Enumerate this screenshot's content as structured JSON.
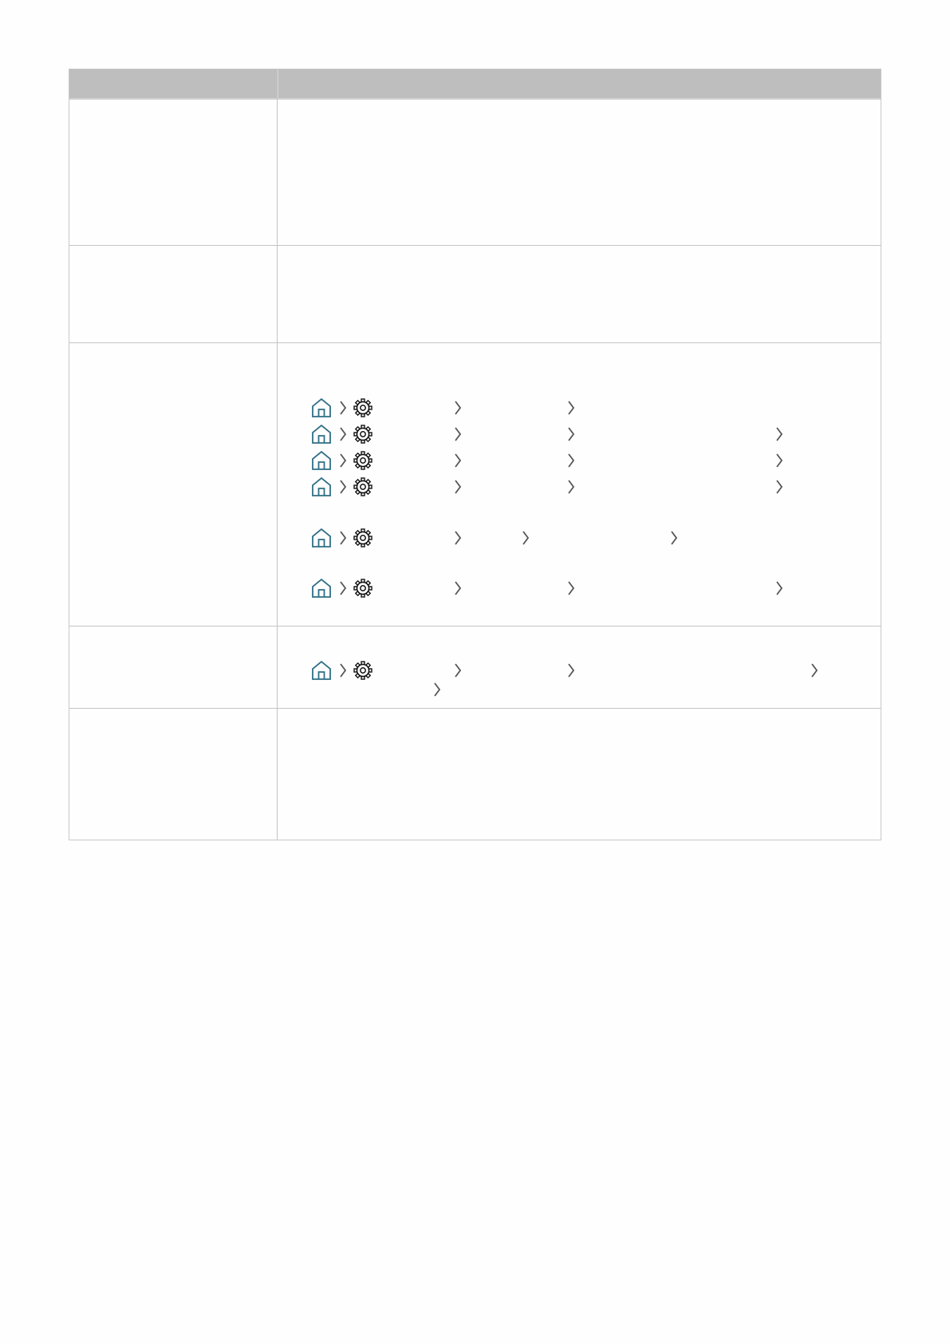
{
  "table": {
    "header": {
      "col1": "",
      "col2": ""
    },
    "row_count": 5
  },
  "colors": {
    "header_bg": "#bebebe",
    "border": "#c4c4c4",
    "home_icon": "#2f6f85",
    "chevron": "#555555",
    "gear": "#111111"
  },
  "icons": {
    "home": "home-icon",
    "settings": "gear-icon",
    "separator": "chevron-right-icon"
  },
  "breadcrumbs": [
    {
      "row": 3,
      "steps": 3
    },
    {
      "row": 3,
      "steps": 4
    },
    {
      "row": 3,
      "steps": 4
    },
    {
      "row": 3,
      "steps": 4
    },
    {
      "row": 3,
      "steps": 4
    },
    {
      "row": 3,
      "steps": 4
    },
    {
      "row": 4,
      "steps": 5
    }
  ]
}
